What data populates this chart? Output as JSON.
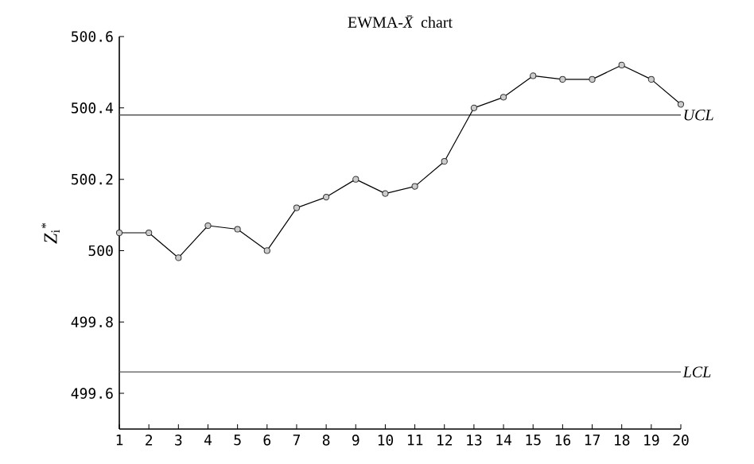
{
  "chart_data": {
    "type": "line",
    "title": "EWMA-*X̄* chart",
    "ylabel": "*Z*$_{i}$$^{*}$",
    "x": [
      1,
      2,
      3,
      4,
      5,
      6,
      7,
      8,
      9,
      10,
      11,
      12,
      13,
      14,
      15,
      16,
      17,
      18,
      19,
      20
    ],
    "series": [
      {
        "color": "#000000",
        "values": [
          500.05,
          500.05,
          499.98,
          500.07,
          500.06,
          500.0,
          500.12,
          500.15,
          500.2,
          500.16,
          500.18,
          500.25,
          500.4,
          500.43,
          500.49,
          500.48,
          500.48,
          500.52,
          500.48,
          500.41
        ]
      }
    ],
    "xlim": [
      1,
      20
    ],
    "xticks": [
      1,
      2,
      3,
      4,
      5,
      6,
      7,
      8,
      9,
      10,
      11,
      12,
      13,
      14,
      15,
      16,
      17,
      18,
      19,
      20
    ],
    "ylim": [
      499.5,
      500.6
    ],
    "yticks": [
      499.6,
      499.8,
      500,
      500.2,
      500.4,
      500.6
    ],
    "ref_lines": [
      {
        "axis": "y",
        "value": 500.38,
        "label": "UCL",
        "color": "#555555"
      },
      {
        "axis": "y",
        "value": 499.66,
        "label": "LCL",
        "color": "#555555"
      }
    ],
    "marker": "circle",
    "line_style": "solid"
  }
}
